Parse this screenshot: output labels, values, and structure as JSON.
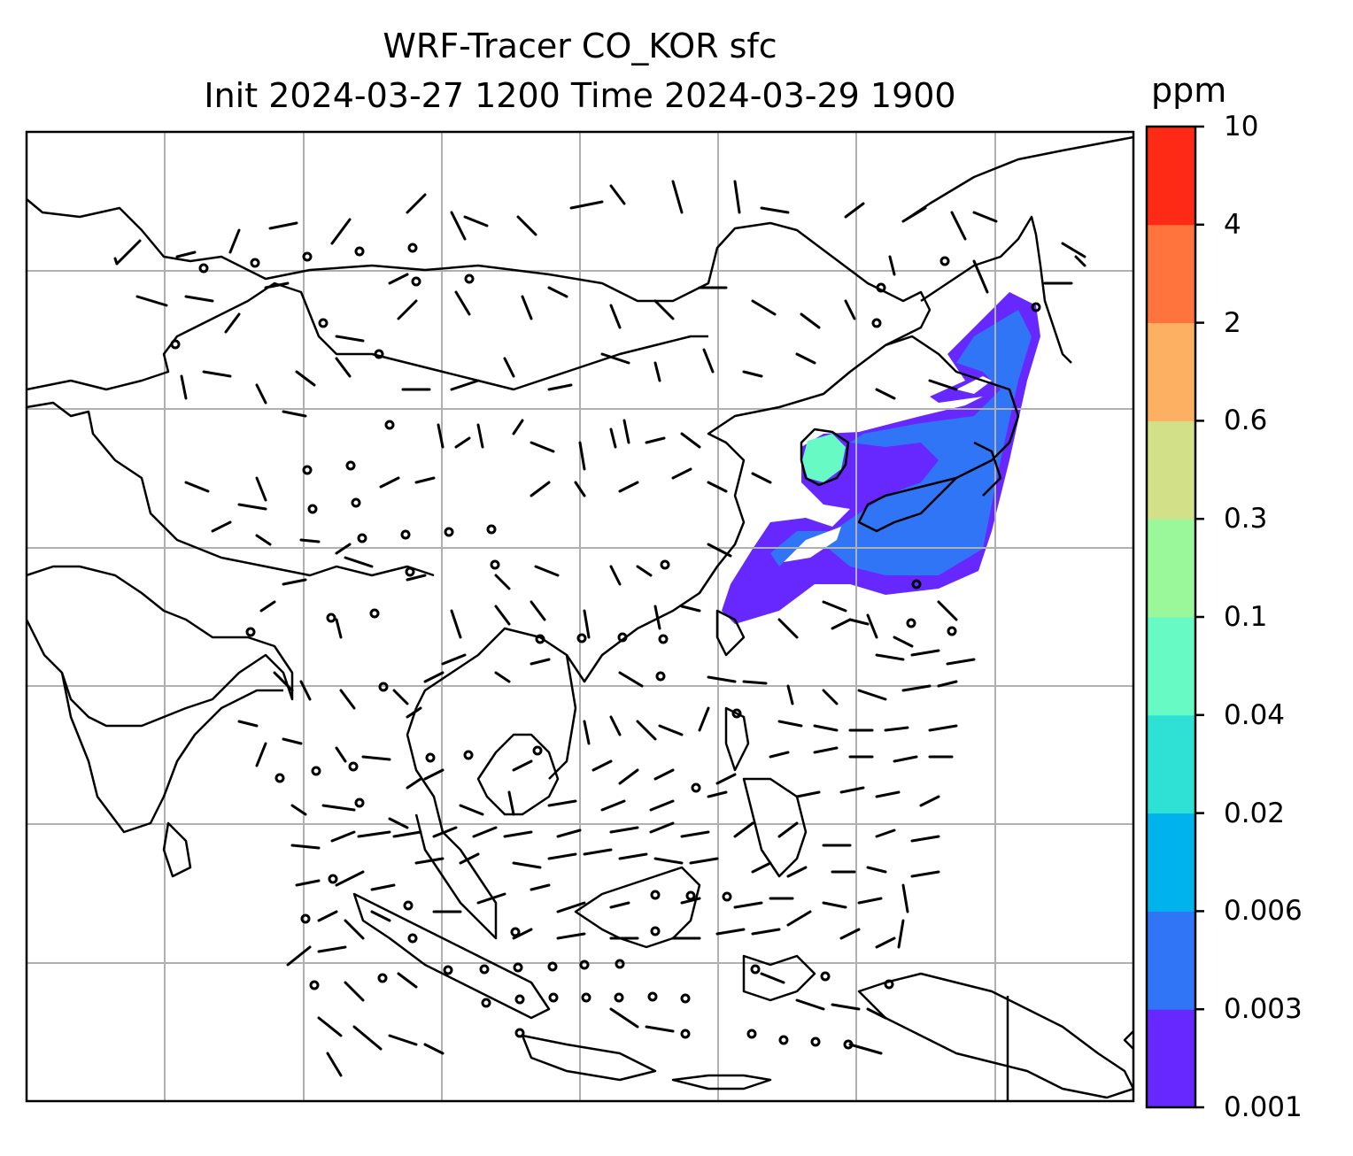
{
  "title": {
    "line1": "WRF-Tracer CO_KOR sfc",
    "line2": "Init 2024-03-27 1200 Time 2024-03-29 1900"
  },
  "colorbar": {
    "unit": "ppm",
    "levels": [
      "0.001",
      "0.003",
      "0.006",
      "0.02",
      "0.04",
      "0.1",
      "0.3",
      "0.6",
      "2",
      "4",
      "10"
    ],
    "colors": [
      "#6628ff",
      "#3075f5",
      "#01b3ec",
      "#2fe0d4",
      "#67fac4",
      "#9af89a",
      "#d2e087",
      "#fdb061",
      "#ff733c",
      "#fe2a15"
    ]
  },
  "map": {
    "gridlines": true,
    "frame_color": "#000000",
    "grid_color": "#b0b0b0",
    "coastline_color": "#000000",
    "plume_colors": [
      "#6628ff",
      "#3075f5",
      "#67fac4"
    ]
  }
}
